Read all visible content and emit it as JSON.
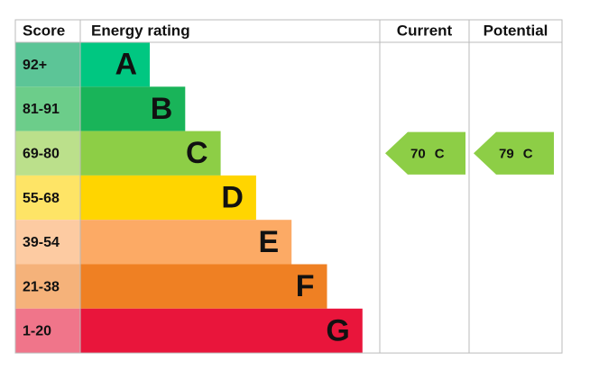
{
  "header": {
    "score": "Score",
    "rating": "Energy rating",
    "current": "Current",
    "potential": "Potential"
  },
  "rows": [
    {
      "score": "92+",
      "letter": "A",
      "color": "#00c781",
      "score_color": "#5cc597"
    },
    {
      "score": "81-91",
      "letter": "B",
      "color": "#19b459",
      "score_color": "#6ccd8a"
    },
    {
      "score": "69-80",
      "letter": "C",
      "color": "#8dce46",
      "score_color": "#bbe08b"
    },
    {
      "score": "55-68",
      "letter": "D",
      "color": "#ffd500",
      "score_color": "#fee466"
    },
    {
      "score": "39-54",
      "letter": "E",
      "color": "#fcaa65",
      "score_color": "#fdcba2"
    },
    {
      "score": "21-38",
      "letter": "F",
      "color": "#ef8023",
      "score_color": "#f5b27a"
    },
    {
      "score": "1-20",
      "letter": "G",
      "color": "#e9153b",
      "score_color": "#f0758a"
    }
  ],
  "current": {
    "score": "70",
    "band": "C"
  },
  "potential": {
    "score": "79",
    "band": "C"
  }
}
